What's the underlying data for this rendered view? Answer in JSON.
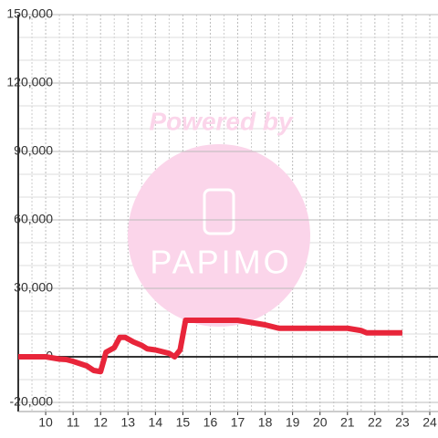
{
  "chart_data": {
    "type": "line",
    "watermark": [
      "Powered by",
      "PAPIMO"
    ],
    "x": [
      9,
      10,
      10.5,
      10.75,
      11,
      11.5,
      11.75,
      12,
      12.2,
      12.5,
      12.7,
      12.9,
      13.2,
      13.5,
      13.7,
      14,
      14.5,
      14.7,
      14.9,
      15.1,
      17,
      17.5,
      18,
      18.5,
      21,
      21.5,
      21.7,
      23
    ],
    "series": [
      {
        "color": "#e8253a",
        "values": [
          0,
          0,
          -1000,
          -1200,
          -2000,
          -4000,
          -6000,
          -6500,
          2000,
          4000,
          8500,
          8500,
          6500,
          5000,
          3500,
          3000,
          1500,
          0,
          3000,
          16000,
          16000,
          15000,
          14000,
          12500,
          12500,
          11500,
          10500,
          10500
        ]
      }
    ],
    "xlim": [
      9,
      24.3
    ],
    "ylim": [
      -24000,
      150000
    ],
    "xticks": [
      10,
      11,
      12,
      13,
      14,
      15,
      16,
      17,
      18,
      19,
      20,
      21,
      22,
      23,
      24
    ],
    "xminorticks": [
      9.5,
      10.5,
      11.5,
      12.5,
      13.5,
      14.5,
      15.5,
      16.5,
      17.5,
      18.5,
      19.5,
      20.5,
      21.5,
      22.5,
      23.5
    ],
    "yticks": [
      {
        "value": -20000,
        "label": "-20,000"
      },
      0,
      {
        "value": 30000,
        "label": "30,000"
      },
      {
        "value": 60000,
        "label": "60,000"
      },
      {
        "value": 90000,
        "label": "90,000"
      },
      {
        "value": 120000,
        "label": "120,000"
      },
      {
        "value": 150000,
        "label": "150,000"
      }
    ],
    "yminorticks": [
      -10000,
      10000,
      20000,
      40000,
      50000,
      70000,
      80000,
      100000,
      110000,
      130000,
      140000
    ],
    "grid": true
  }
}
